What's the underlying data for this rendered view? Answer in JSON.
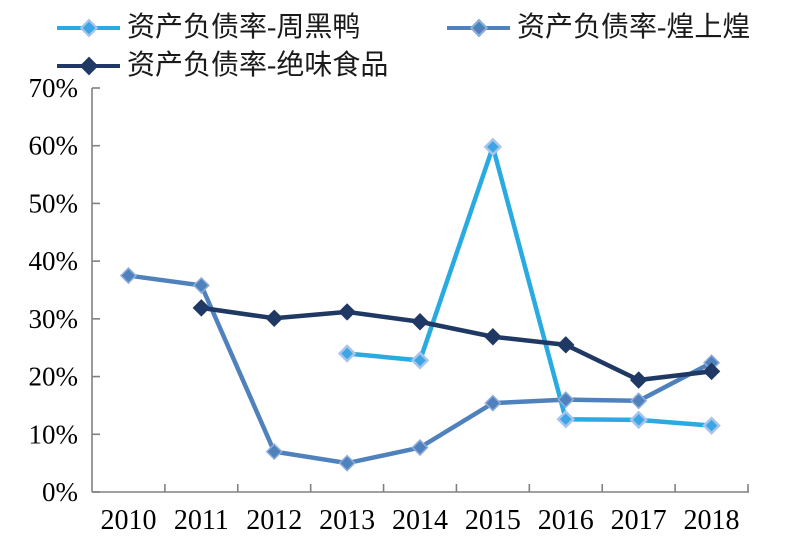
{
  "chart_data": {
    "type": "line",
    "categories": [
      "2010",
      "2011",
      "2012",
      "2013",
      "2014",
      "2015",
      "2016",
      "2017",
      "2018"
    ],
    "series": [
      {
        "name": "资产负债率-周黑鸭",
        "line_color": "#29ABE2",
        "marker_fill": "#3BA6E3",
        "marker_stroke": "#A8C4ED",
        "marker_stroke_width": 2.5,
        "marker_half": 7.5,
        "values": [
          null,
          null,
          null,
          24.0,
          22.8,
          59.8,
          12.6,
          12.5,
          11.5
        ]
      },
      {
        "name": "资产负债率-煌上煌",
        "line_color": "#4F81BD",
        "marker_fill": "#4F81BD",
        "marker_stroke": "#8FAEDA",
        "marker_stroke_width": 1.5,
        "marker_half": 7.5,
        "values": [
          37.5,
          35.8,
          7.0,
          5.0,
          7.7,
          15.4,
          16.0,
          15.8,
          22.4
        ]
      },
      {
        "name": "资产负债率-绝味食品",
        "line_color": "#1F3864",
        "marker_fill": "#1F3864",
        "marker_stroke": "#1F3864",
        "marker_stroke_width": 1,
        "marker_half": 8,
        "values": [
          null,
          31.9,
          30.1,
          31.2,
          29.5,
          26.9,
          25.5,
          19.4,
          20.9
        ]
      }
    ],
    "ylim": [
      0,
      70
    ],
    "ytick_step": 10,
    "ytick_labels": [
      "0%",
      "10%",
      "20%",
      "30%",
      "40%",
      "50%",
      "60%",
      "70%"
    ],
    "xlabel": "",
    "ylabel": "",
    "title": "",
    "grid": false,
    "legend_position": "top-left"
  },
  "style": {
    "axis_color": "#808080",
    "label_color": "#000000"
  }
}
